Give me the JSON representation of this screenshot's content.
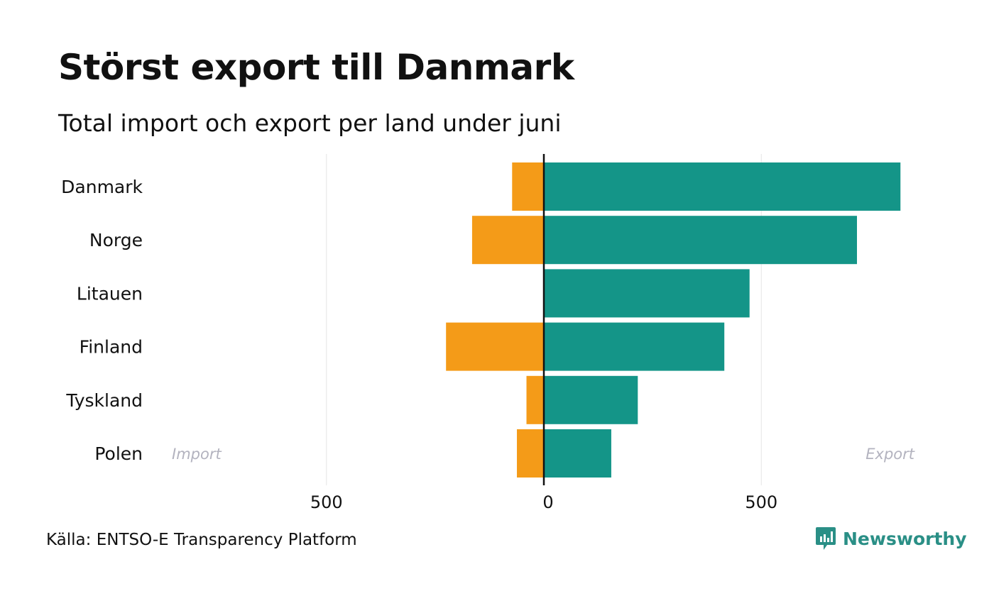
{
  "chart_data": {
    "type": "bar",
    "orientation": "horizontal-diverging",
    "title": "Störst export till Danmark",
    "subtitle": "Total import och export per land under juni",
    "categories": [
      "Danmark",
      "Norge",
      "Litauen",
      "Finland",
      "Tyskland",
      "Polen"
    ],
    "series": [
      {
        "name": "Import",
        "values": [
          73,
          165,
          0,
          225,
          40,
          62
        ]
      },
      {
        "name": "Export",
        "values": [
          820,
          720,
          473,
          415,
          216,
          155
        ]
      }
    ],
    "x_ticks": [
      -500,
      0,
      500
    ],
    "x_tick_labels": [
      "500",
      "0",
      "500"
    ],
    "xlim": [
      -1000,
      850
    ],
    "side_labels": {
      "left": "Import",
      "right": "Export"
    },
    "colors": {
      "import": "#f49b18",
      "export": "#149588",
      "grid": "#e6e6e6",
      "zero_line": "#111111",
      "side_label": "#b3b3bf"
    },
    "source": "Källa: ENTSO-E Transparency Platform"
  },
  "brand": {
    "name": "Newsworthy",
    "icon": "newsworthy-logo-icon",
    "color": "#2a8f86"
  }
}
